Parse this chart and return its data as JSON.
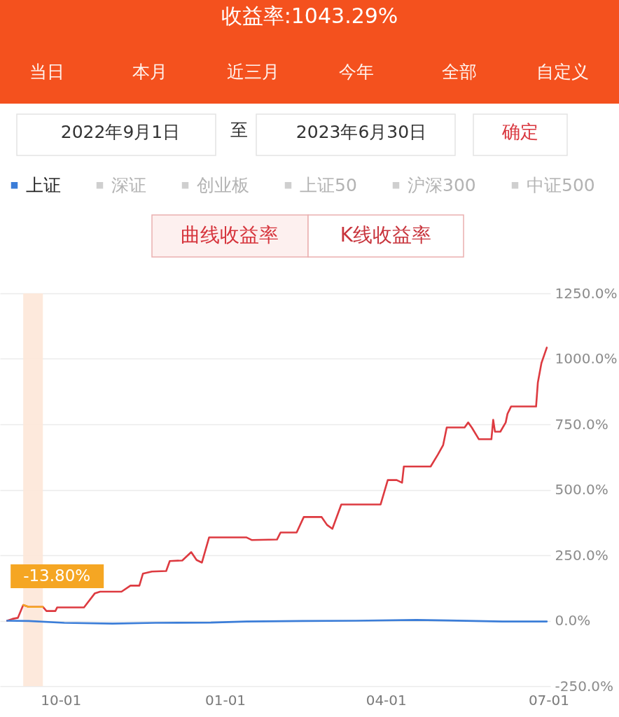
{
  "chart_data": {
    "type": "line",
    "title": "收益率:1043.29%",
    "annotations": [
      "当日",
      "本月",
      "近三月",
      "今年",
      "全部",
      "自定义",
      "2022年9月1日",
      "至",
      "2023年6月30日",
      "确定",
      "曲线收益率",
      "K线收益率"
    ],
    "xlim": [
      "2022-08-28",
      "2023-07-02"
    ],
    "xticks": [
      {
        "value": "2022-10-01",
        "label": "10-01"
      },
      {
        "value": "2023-01-01",
        "label": "01-01"
      },
      {
        "value": "2023-04-01",
        "label": "04-01"
      },
      {
        "value": "2023-07-01",
        "label": "07-01"
      }
    ],
    "ylim": [
      -250,
      1250
    ],
    "yticks": [
      {
        "value": -250,
        "label": "-250.0%"
      },
      {
        "value": 0,
        "label": "0.0%"
      },
      {
        "value": 250,
        "label": "250.0%"
      },
      {
        "value": 500,
        "label": "500.0%"
      },
      {
        "value": 750,
        "label": "750.0%"
      },
      {
        "value": 1000,
        "label": "1000.0%"
      },
      {
        "value": 1250,
        "label": "1250.0%"
      }
    ],
    "grid": "y",
    "legend": "top",
    "line_style": "solid",
    "bands": [
      {
        "axis": "x",
        "from": "2022-09-10",
        "to": "2022-09-21",
        "label": "-13.80%",
        "color": "#fde7d8"
      }
    ],
    "series": [
      {
        "color": "#dd3a40",
        "x": [
          "2022-09-01",
          "2022-09-04",
          "2022-09-07",
          "2022-09-10",
          "2022-09-13",
          "2022-09-21",
          "2022-09-23",
          "2022-09-28",
          "2022-09-29",
          "2022-10-14",
          "2022-10-20",
          "2022-10-23",
          "2022-11-04",
          "2022-11-09",
          "2022-11-14",
          "2022-11-16",
          "2022-11-21",
          "2022-11-29",
          "2022-12-01",
          "2022-12-08",
          "2022-12-13",
          "2022-12-16",
          "2022-12-19",
          "2022-12-23",
          "2023-01-13",
          "2023-01-16",
          "2023-01-30",
          "2023-02-01",
          "2023-02-10",
          "2023-02-14",
          "2023-02-24",
          "2023-02-27",
          "2023-03-02",
          "2023-03-07",
          "2023-03-29",
          "2023-04-02",
          "2023-04-07",
          "2023-04-10",
          "2023-04-11",
          "2023-04-26",
          "2023-04-30",
          "2023-05-03",
          "2023-05-05",
          "2023-05-15",
          "2023-05-17",
          "2023-05-19",
          "2023-05-23",
          "2023-05-30",
          "2023-05-31",
          "2023-06-01",
          "2023-06-04",
          "2023-06-07",
          "2023-06-08",
          "2023-06-10",
          "2023-06-24",
          "2023-06-25",
          "2023-06-27",
          "2023-06-30"
        ],
        "values": [
          0,
          7,
          11,
          60,
          53,
          53,
          37,
          37,
          51,
          51,
          104,
          111,
          111,
          134,
          134,
          180,
          188,
          190,
          228,
          230,
          262,
          232,
          222,
          318,
          318,
          308,
          310,
          337,
          337,
          396,
          396,
          366,
          351,
          444,
          444,
          537,
          537,
          527,
          589,
          589,
          634,
          671,
          738,
          738,
          757,
          738,
          693,
          693,
          767,
          722,
          722,
          757,
          790,
          818,
          818,
          910,
          984,
          1043
        ]
      },
      {
        "color": "#f5a623",
        "x": [
          "2022-09-10",
          "2022-09-13",
          "2022-09-21"
        ],
        "values": [
          60,
          53,
          53
        ]
      },
      {
        "name": "上证",
        "color": "#3b7dd8",
        "x": [
          "2022-09-01",
          "2022-09-13",
          "2022-10-03",
          "2022-10-30",
          "2022-11-23",
          "2022-12-24",
          "2023-01-13",
          "2023-02-13",
          "2023-03-15",
          "2023-04-18",
          "2023-05-06",
          "2023-06-05",
          "2023-06-30"
        ],
        "values": [
          0,
          -1,
          -8,
          -11,
          -8,
          -7,
          -3,
          -1,
          0,
          3,
          1,
          -3,
          -3
        ]
      },
      {
        "name": "深证",
        "color": "#cfcfcf"
      },
      {
        "name": "创业板",
        "color": "#cfcfcf"
      },
      {
        "name": "上证50",
        "color": "#cfcfcf"
      },
      {
        "name": "沪深300",
        "color": "#cfcfcf"
      },
      {
        "name": "中证500",
        "color": "#cfcfcf"
      }
    ]
  }
}
